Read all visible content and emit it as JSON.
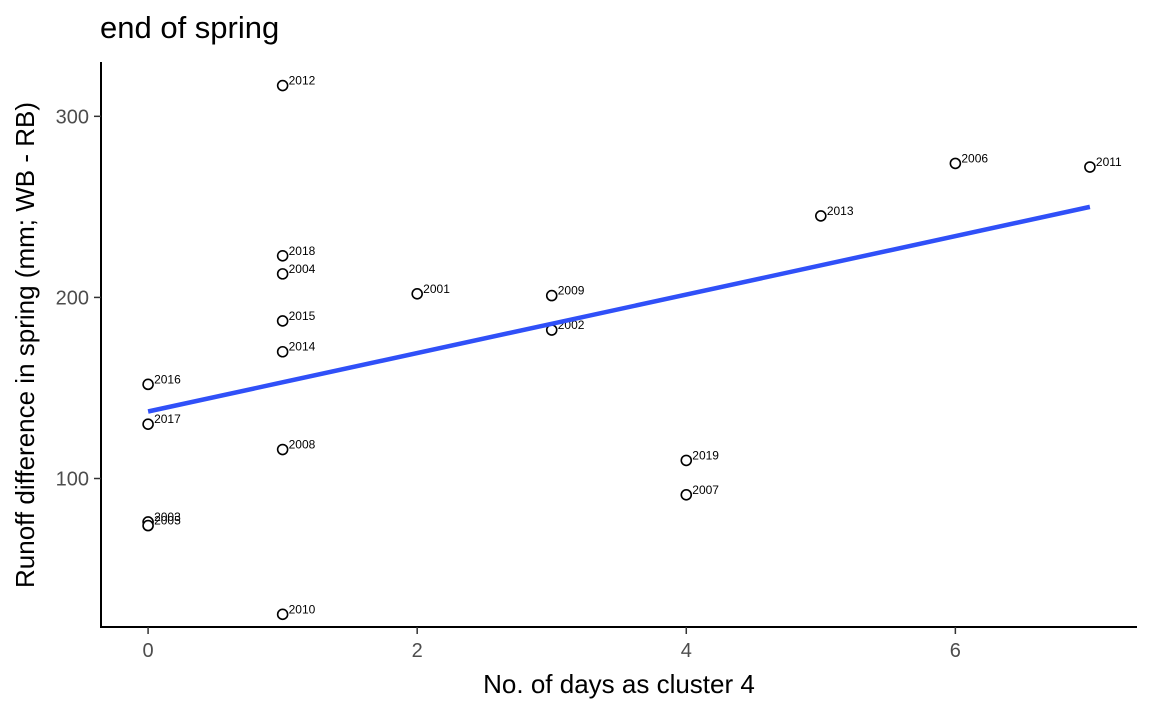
{
  "chart_data": {
    "type": "scatter",
    "title": "end of spring",
    "xlabel": "No. of days as cluster 4",
    "ylabel": "Runoff difference in spring (mm; WB - RB)",
    "xlim": [
      -0.35,
      7.35
    ],
    "ylim": [
      18,
      330
    ],
    "xticks": [
      0,
      2,
      4,
      6
    ],
    "yticks": [
      100,
      200,
      300
    ],
    "grid": false,
    "legend": "none",
    "points": [
      {
        "x": 0,
        "y": 152,
        "label": "2016"
      },
      {
        "x": 0,
        "y": 130,
        "label": "2017"
      },
      {
        "x": 0,
        "y": 76,
        "label": "2003"
      },
      {
        "x": 0,
        "y": 74,
        "label": "2005"
      },
      {
        "x": 1,
        "y": 317,
        "label": "2012"
      },
      {
        "x": 1,
        "y": 223,
        "label": "2018"
      },
      {
        "x": 1,
        "y": 213,
        "label": "2004"
      },
      {
        "x": 1,
        "y": 187,
        "label": "2015"
      },
      {
        "x": 1,
        "y": 170,
        "label": "2014"
      },
      {
        "x": 1,
        "y": 116,
        "label": "2008"
      },
      {
        "x": 1,
        "y": 25,
        "label": "2010"
      },
      {
        "x": 2,
        "y": 202,
        "label": "2001"
      },
      {
        "x": 3,
        "y": 201,
        "label": "2009"
      },
      {
        "x": 3,
        "y": 182,
        "label": "2002"
      },
      {
        "x": 4,
        "y": 110,
        "label": "2019"
      },
      {
        "x": 4,
        "y": 91,
        "label": "2007"
      },
      {
        "x": 5,
        "y": 245,
        "label": "2013"
      },
      {
        "x": 6,
        "y": 274,
        "label": "2006"
      },
      {
        "x": 7,
        "y": 272,
        "label": "2011"
      }
    ],
    "trend_line": {
      "x": [
        0,
        7
      ],
      "y": [
        137,
        250
      ],
      "color": "#3050f8"
    }
  }
}
